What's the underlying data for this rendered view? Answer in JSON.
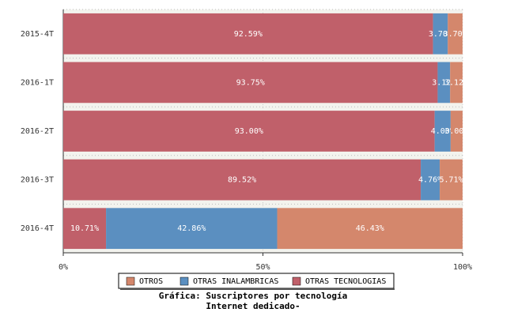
{
  "chart_data": {
    "type": "stacked-bar-horizontal",
    "title": "Gráfica: Suscriptores por tecnología",
    "subtitle": "Internet dedicado-",
    "categories": [
      "2015-4T",
      "2016-1T",
      "2016-2T",
      "2016-3T",
      "2016-4T"
    ],
    "series": [
      {
        "name": "OTRAS TECNOLOGIAS",
        "color": "#c0606a",
        "values": [
          92.59,
          93.75,
          93.0,
          89.52,
          10.71
        ],
        "value_labels": [
          "92.59%",
          "93.75%",
          "93.00%",
          "89.52%",
          "10.71%"
        ]
      },
      {
        "name": "OTRAS INALAMBRICAS",
        "color": "#5b8fc0",
        "values": [
          3.7,
          3.12,
          4.0,
          4.76,
          42.86
        ],
        "value_labels": [
          "3.70%",
          "3.12%",
          "4.00%",
          "4.76%",
          "42.86%"
        ]
      },
      {
        "name": "OTROS",
        "color": "#d4876c",
        "values": [
          3.7,
          3.12,
          3.0,
          5.71,
          46.43
        ],
        "value_labels": [
          "3.70%",
          "3.12%",
          "3.00%",
          "5.71%",
          "46.43%"
        ]
      }
    ],
    "xlim": [
      0,
      100
    ],
    "xticks": [
      {
        "value": 0,
        "label": "0%"
      },
      {
        "value": 50,
        "label": "50%"
      },
      {
        "value": 100,
        "label": "100%"
      }
    ],
    "grid": true
  }
}
